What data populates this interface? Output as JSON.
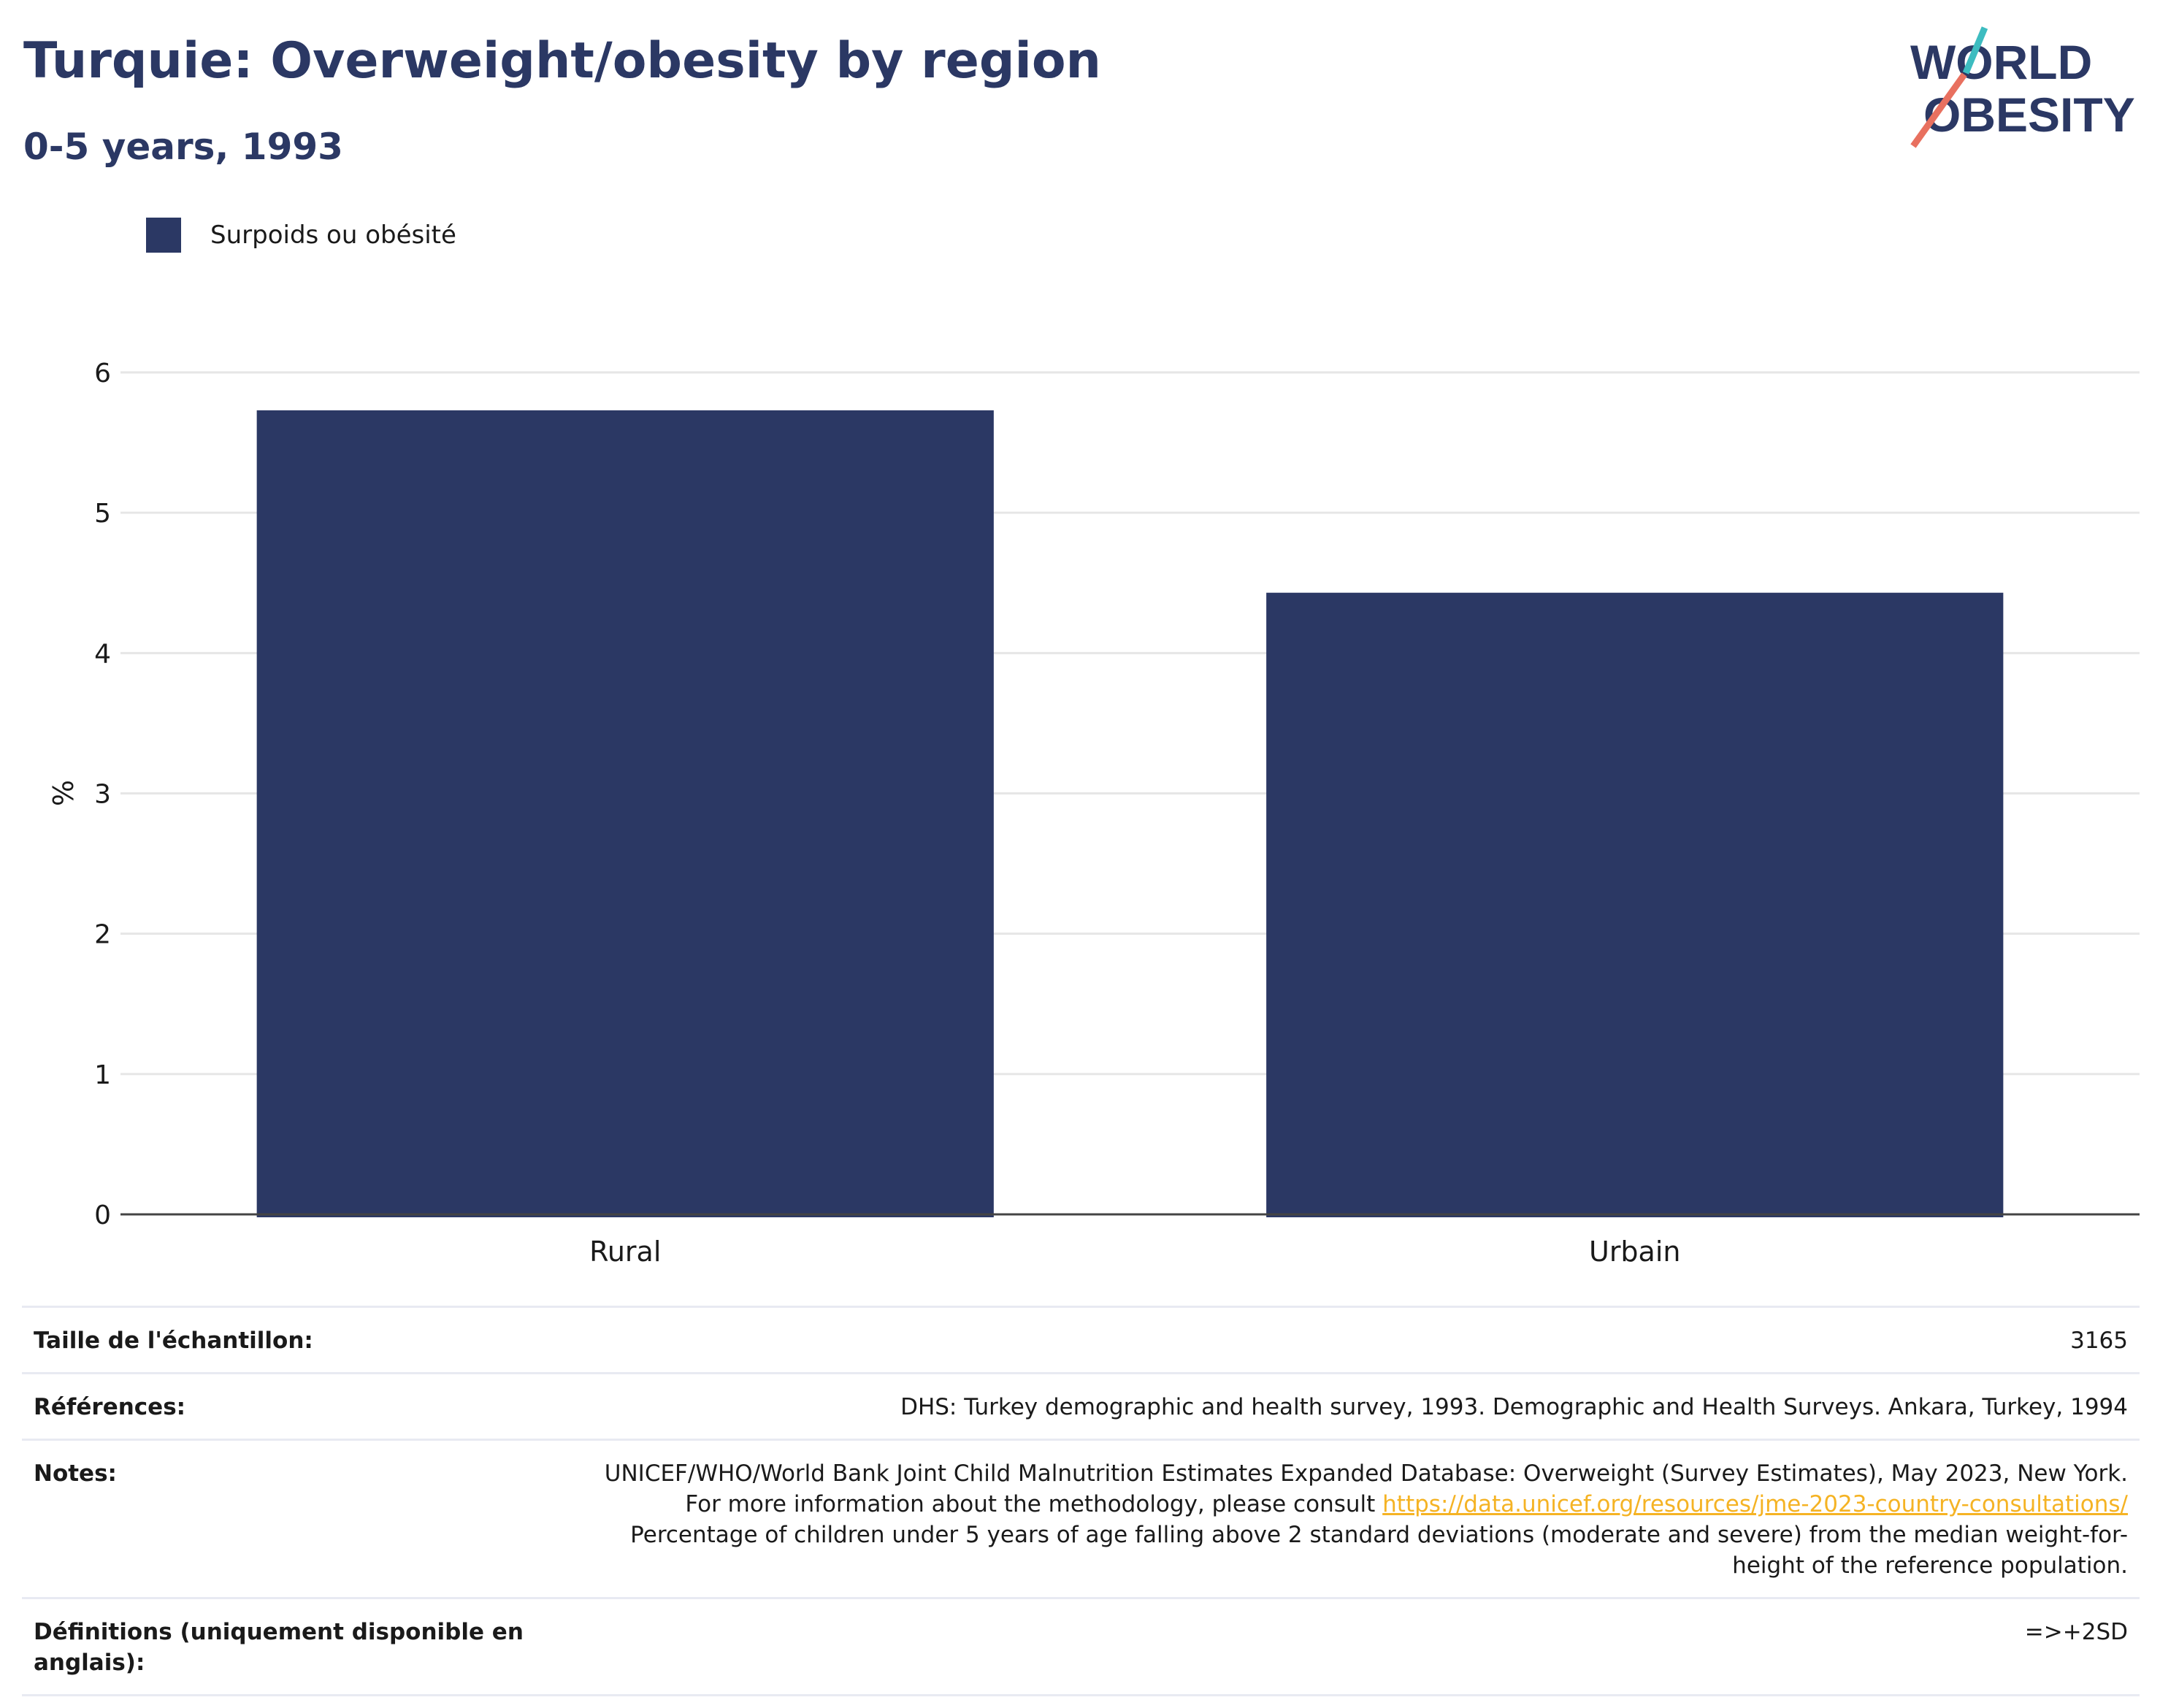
{
  "header": {
    "title": "Turquie: Overweight/obesity by region",
    "subtitle": "0-5 years, 1993"
  },
  "logo": {
    "line1": "WORLD",
    "line2": "OBESITY",
    "accent_teal": "#3dbcc0",
    "accent_coral": "#e8705f"
  },
  "legend": {
    "label": "Surpoids ou obésité",
    "color": "#2b3864"
  },
  "chart_data": {
    "type": "bar",
    "categories": [
      "Rural",
      "Urbain"
    ],
    "series": [
      {
        "name": "Surpoids ou obésité",
        "values": [
          5.73,
          4.43
        ]
      }
    ],
    "title": "Turquie: Overweight/obesity by region",
    "subtitle": "0-5 years, 1993",
    "xlabel": "",
    "ylabel": "%",
    "ylim": [
      0,
      6
    ],
    "yticks": [
      0,
      1,
      2,
      3,
      4,
      5,
      6
    ],
    "grid": true,
    "legend_position": "top-left",
    "bar_color": "#2b3864"
  },
  "info_table": {
    "sample_size": {
      "label": "Taille de l'échantillon:",
      "value": "3165"
    },
    "references": {
      "label": "Références:",
      "value": "DHS: Turkey demographic and health survey, 1993. Demographic and Health Surveys. Ankara, Turkey, 1994"
    },
    "notes": {
      "label": "Notes:",
      "text1": "UNICEF/WHO/World Bank Joint Child Malnutrition Estimates Expanded Database: Overweight (Survey Estimates), May 2023, New York. For more information about the methodology, please consult",
      "link": "https://data.unicef.org/resources/jme-2023-country-consultations/",
      "text2": "Percentage of children under 5 years of age falling above 2 standard deviations (moderate and severe) from the median weight-for-height of the reference population."
    },
    "definitions": {
      "label": "Définitions (uniquement disponible en anglais):",
      "value": "=>+2SD"
    }
  }
}
